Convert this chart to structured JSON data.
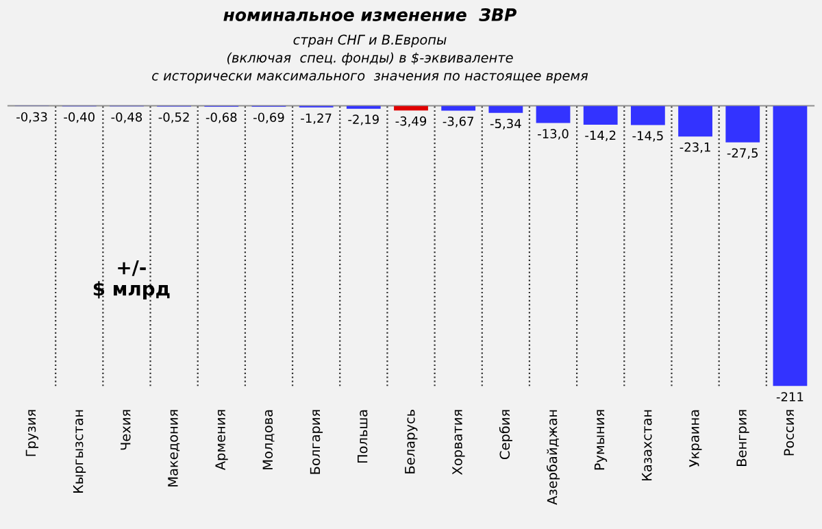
{
  "chart_data": {
    "type": "bar",
    "title": "номинальное изменение  ЗВР",
    "subtitle": "стран СНГ и В.Европы\n(включая  спец. фонды) в $-эквиваленте\nс исторически максимального  значения по настоящее время",
    "categories": [
      "Грузия",
      "Кыргызстан",
      "Чехия",
      "Македония",
      "Армения",
      "Молдова",
      "Болгария",
      "Польша",
      "Беларусь",
      "Хорватия",
      "Сербия",
      "Азербайджан",
      "Румыния",
      "Казахстан",
      "Украина",
      "Венгрия",
      "Россия"
    ],
    "values": [
      -0.33,
      -0.4,
      -0.48,
      -0.52,
      -0.68,
      -0.69,
      -1.27,
      -2.19,
      -3.49,
      -3.67,
      -5.34,
      -13.0,
      -14.2,
      -14.5,
      -23.1,
      -27.5,
      -211
    ],
    "value_labels": [
      "-0,33",
      "-0,40",
      "-0,48",
      "-0,52",
      "-0,68",
      "-0,69",
      "-1,27",
      "-2,19",
      "-3,49",
      "-3,67",
      "-5,34",
      "-13,0",
      "-14,2",
      "-14,5",
      "-23,1",
      "-27,5",
      "-211"
    ],
    "colors": [
      "#3333ff",
      "#3333ff",
      "#3333ff",
      "#3333ff",
      "#3333ff",
      "#3333ff",
      "#3333ff",
      "#3333ff",
      "#e00000",
      "#3333ff",
      "#3333ff",
      "#3333ff",
      "#3333ff",
      "#3333ff",
      "#3333ff",
      "#3333ff",
      "#3333ff"
    ],
    "ylabel": "+/-\n$ млрд",
    "grid": "x",
    "tick_labels": "x"
  }
}
